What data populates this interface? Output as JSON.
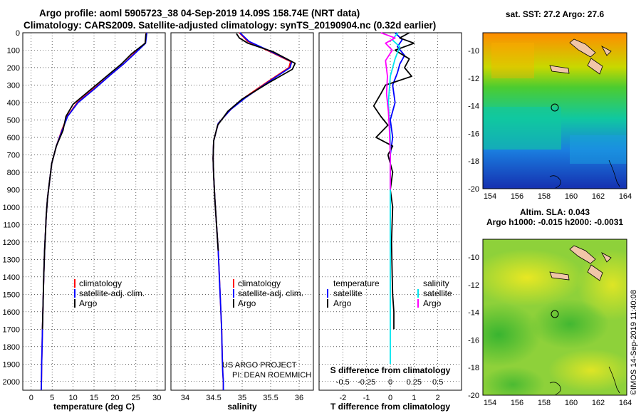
{
  "header": {
    "title_line1": "Argo profile: aoml 5905723_38 04-Sep-2019 14.09S 158.74E (NRT data)",
    "title_line2": "Climatology: CARS2009. Satellite-adjusted climatology: synTS_20190904.nc (0.32d earlier)"
  },
  "colors": {
    "climatology": "#ff0000",
    "satellite": "#0000ff",
    "argo": "#000000",
    "sat_salinity": "#00e5ee",
    "argo_salinity_diff": "#ff00ff"
  },
  "chart_data": [
    {
      "type": "line",
      "name": "temperature-profile",
      "xlabel": "temperature (deg C)",
      "ylabel": "",
      "xlim": [
        -2,
        32
      ],
      "ylim": [
        2050,
        0
      ],
      "xticks": [
        0,
        5,
        10,
        15,
        20,
        25,
        30
      ],
      "xtick_labels": [
        "0",
        "5",
        "10",
        "15",
        "20",
        "25",
        "30"
      ],
      "yticks": [
        0,
        100,
        200,
        300,
        400,
        500,
        600,
        700,
        800,
        900,
        1000,
        1100,
        1200,
        1300,
        1400,
        1500,
        1600,
        1700,
        1800,
        1900,
        2000
      ],
      "ytick_labels": [
        "0",
        "100",
        "200",
        "300",
        "400",
        "500",
        "600",
        "700",
        "800",
        "900",
        "1000",
        "1100",
        "1200",
        "1300",
        "1400",
        "1500",
        "1600",
        "1700",
        "1800",
        "1900",
        "2000"
      ],
      "grid": true,
      "legend": {
        "position": "lower-middle",
        "labels": [
          "climatology",
          "satellite-adj. clim.",
          "Argo"
        ]
      },
      "series": [
        {
          "name": "climatology",
          "color": "#ff0000",
          "x": [
            27.5,
            27.2,
            24.5,
            22.0,
            19.0,
            15.0,
            11.0,
            8.6,
            7.3,
            6.0,
            4.9,
            4.4,
            3.9,
            3.6,
            3.4,
            3.2,
            3.0,
            2.9,
            2.8,
            2.7,
            2.6,
            2.5,
            2.45,
            2.4
          ],
          "y": [
            0,
            60,
            120,
            180,
            240,
            320,
            400,
            480,
            560,
            650,
            750,
            850,
            950,
            1050,
            1150,
            1250,
            1400,
            1500,
            1600,
            1700,
            1800,
            1900,
            2000,
            2050
          ]
        },
        {
          "name": "satellite-adj. clim.",
          "color": "#0000ff",
          "x": [
            27.6,
            27.3,
            24.7,
            22.0,
            19.0,
            15.2,
            11.2,
            8.7,
            7.4,
            6.0,
            4.9,
            4.4,
            3.9,
            3.6,
            3.4,
            3.2,
            3.0,
            2.9,
            2.8,
            2.7,
            2.6,
            2.5,
            2.45,
            2.4
          ],
          "y": [
            0,
            60,
            120,
            180,
            240,
            320,
            400,
            480,
            560,
            650,
            750,
            850,
            950,
            1050,
            1150,
            1250,
            1400,
            1500,
            1600,
            1700,
            1800,
            1900,
            2000,
            2050
          ]
        },
        {
          "name": "Argo",
          "color": "#000000",
          "x": [
            27.4,
            27.2,
            24.0,
            21.5,
            18.0,
            14.0,
            10.0,
            8.3,
            7.6,
            6.0,
            4.9,
            4.4,
            3.9,
            3.6,
            3.4,
            3.2,
            3.0,
            2.9,
            2.8,
            2.7
          ],
          "y": [
            5,
            60,
            120,
            180,
            250,
            330,
            410,
            480,
            560,
            650,
            750,
            850,
            950,
            1050,
            1150,
            1250,
            1400,
            1500,
            1600,
            1700
          ]
        }
      ]
    },
    {
      "type": "line",
      "name": "salinity-profile",
      "xlabel": "salinity",
      "xlim": [
        33.75,
        36.25
      ],
      "ylim": [
        2050,
        0
      ],
      "xticks": [
        34,
        34.5,
        35,
        35.5,
        36
      ],
      "xtick_labels": [
        "34",
        "34.5",
        "35",
        "35.5",
        "36"
      ],
      "grid": true,
      "legend": {
        "position": "lower-middle",
        "labels": [
          "climatology",
          "satellite-adj. clim.",
          "Argo"
        ]
      },
      "series": [
        {
          "name": "climatology",
          "color": "#ff0000",
          "x": [
            34.95,
            35.1,
            35.5,
            35.85,
            35.82,
            35.45,
            35.05,
            34.8,
            34.58,
            34.5,
            34.49,
            34.5,
            34.52,
            34.55,
            34.58,
            34.6,
            34.62,
            34.64,
            34.65,
            34.66,
            34.67,
            34.67
          ],
          "y": [
            0,
            50,
            110,
            165,
            200,
            280,
            370,
            440,
            520,
            620,
            720,
            820,
            950,
            1100,
            1250,
            1400,
            1550,
            1700,
            1850,
            1950,
            2000,
            2050
          ]
        },
        {
          "name": "satellite-adj. clim.",
          "color": "#0000ff",
          "x": [
            34.96,
            35.12,
            35.52,
            35.87,
            35.84,
            35.47,
            35.07,
            34.8,
            34.58,
            34.5,
            34.49,
            34.5,
            34.52,
            34.55,
            34.58,
            34.6,
            34.62,
            34.64,
            34.65,
            34.66,
            34.67,
            34.67
          ],
          "y": [
            0,
            50,
            110,
            165,
            200,
            280,
            370,
            440,
            520,
            620,
            720,
            820,
            950,
            1100,
            1250,
            1400,
            1550,
            1700,
            1850,
            1950,
            2000,
            2050
          ]
        },
        {
          "name": "Argo",
          "color": "#000000",
          "x": [
            34.9,
            34.95,
            35.1,
            35.55,
            35.93,
            35.88,
            35.45,
            35.0,
            34.75,
            34.57,
            34.5,
            34.49,
            34.5,
            34.52,
            34.55,
            34.58
          ],
          "y": [
            5,
            30,
            60,
            110,
            175,
            210,
            290,
            380,
            450,
            530,
            620,
            720,
            820,
            950,
            1100,
            1250
          ]
        }
      ]
    },
    {
      "type": "line",
      "name": "difference-profile",
      "xlabel": "T difference from climatology",
      "xlabel2": "S difference from climatology",
      "xlim": [
        -3,
        3
      ],
      "ylim": [
        2050,
        0
      ],
      "xticks": [
        -2,
        -1,
        0,
        1,
        2
      ],
      "xtick_labels": [
        "-2",
        "-1",
        "0",
        "1",
        "2"
      ],
      "xticks_s": [
        -0.5,
        -0.25,
        0,
        0.25,
        0.5
      ],
      "xtick_labels_s": [
        "-0.5",
        "-0.25",
        "0",
        "0.25",
        "0.5"
      ],
      "grid": true,
      "legend_left": {
        "title": "temperature",
        "labels": [
          "satellite",
          "Argo"
        ]
      },
      "legend_right": {
        "title": "salinity",
        "labels": [
          "satellite",
          "Argo"
        ]
      },
      "series": [
        {
          "name": "T satellite",
          "color": "#0000ff",
          "x": [
            0.2,
            0.5,
            0.3,
            0.6,
            0.4,
            0.3,
            0.1,
            0.2,
            0.0,
            0.1,
            0.0,
            0.0,
            0.0
          ],
          "y": [
            0,
            40,
            80,
            130,
            180,
            230,
            300,
            400,
            500,
            600,
            700,
            800,
            900
          ]
        },
        {
          "name": "T Argo",
          "color": "#000000",
          "x": [
            0.8,
            0.4,
            1.0,
            0.2,
            0.8,
            0.6,
            0.9,
            -0.2,
            -0.4,
            -0.7,
            -0.4,
            -0.1,
            -0.6,
            0.1,
            -0.1,
            0.1,
            0.0,
            0.1,
            0.05,
            0.08,
            0.1,
            0.15,
            0.15
          ],
          "y": [
            0,
            30,
            60,
            100,
            150,
            200,
            250,
            300,
            350,
            420,
            480,
            530,
            600,
            650,
            700,
            800,
            900,
            1000,
            1200,
            1400,
            1500,
            1600,
            1700
          ]
        },
        {
          "name": "S satellite",
          "color": "#00e5ee",
          "x": [
            0.08,
            0.02,
            0.1,
            0.05,
            0.0,
            -0.02,
            0.0,
            0.0,
            0.0,
            0.0
          ],
          "y": [
            0,
            40,
            80,
            150,
            250,
            400,
            600,
            900,
            1400,
            1900
          ]
        },
        {
          "name": "S Argo",
          "color": "#ff00ff",
          "x": [
            -0.1,
            0.05,
            -0.05,
            0.02,
            -0.05,
            -0.03,
            -0.04,
            -0.02,
            -0.01,
            0.0,
            0.0
          ],
          "y": [
            0,
            30,
            60,
            100,
            160,
            250,
            350,
            450,
            550,
            700,
            900
          ]
        }
      ]
    }
  ],
  "maps": {
    "sst": {
      "title": "sat. SST: 27.2 Argo: 27.6",
      "xticks": [
        "154",
        "156",
        "158",
        "160",
        "162",
        "164"
      ],
      "yticks": [
        "-10",
        "-12",
        "-14",
        "-16",
        "-18",
        "-20"
      ]
    },
    "sla": {
      "title1": "Altim. SLA: 0.043",
      "title2": "Argo h1000: -0.015 h2000: -0.0031",
      "xticks": [
        "154",
        "156",
        "158",
        "160",
        "162",
        "164"
      ],
      "yticks": [
        "-10",
        "-12",
        "-14",
        "-16",
        "-18",
        "-20"
      ]
    }
  },
  "credits": {
    "project_line1": "US ARGO PROJECT",
    "project_line2": "PI: DEAN ROEMMICH",
    "imos": "©IMOS 14-Sep-2019 11:40:08"
  }
}
